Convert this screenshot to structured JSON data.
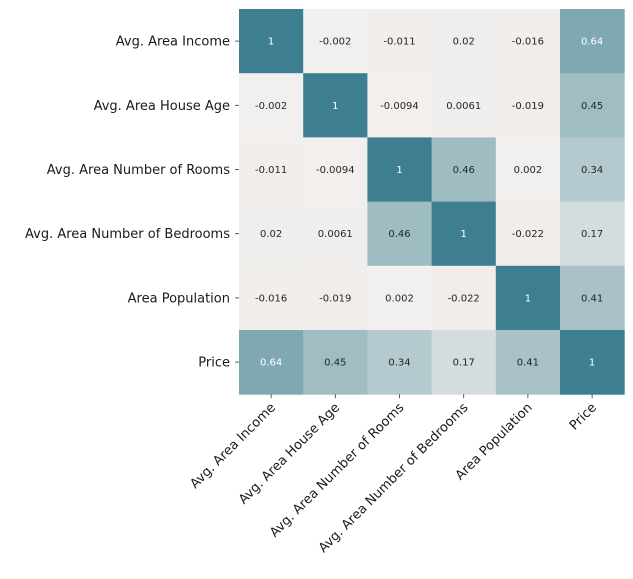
{
  "chart_data": {
    "type": "heatmap",
    "title": "",
    "xlabel": "",
    "ylabel": "",
    "row_labels": [
      "Avg. Area Income",
      "Avg. Area House Age",
      "Avg. Area Number of Rooms",
      "Avg. Area Number of Bedrooms",
      "Area Population",
      "Price"
    ],
    "col_labels": [
      "Avg. Area Income",
      "Avg. Area House Age",
      "Avg. Area Number of Rooms",
      "Avg. Area Number of Bedrooms",
      "Area Population",
      "Price"
    ],
    "values": [
      [
        1,
        -0.002,
        -0.011,
        0.02,
        -0.016,
        0.64
      ],
      [
        -0.002,
        1,
        -0.0094,
        0.0061,
        -0.019,
        0.45
      ],
      [
        -0.011,
        -0.0094,
        1,
        0.46,
        0.002,
        0.34
      ],
      [
        0.02,
        0.0061,
        0.46,
        1,
        -0.022,
        0.17
      ],
      [
        -0.016,
        -0.019,
        0.002,
        -0.022,
        1,
        0.41
      ],
      [
        0.64,
        0.45,
        0.34,
        0.17,
        0.41,
        1
      ]
    ],
    "annotated": true,
    "colorbar": false,
    "color_neutral": "#f2f0ee",
    "color_high": "#3d7f91",
    "color_low": "#d0674e"
  }
}
